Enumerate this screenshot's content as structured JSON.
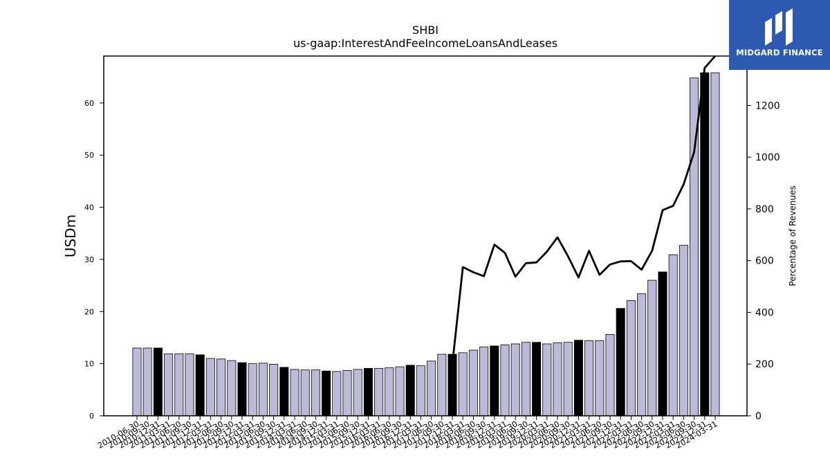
{
  "chart_data": {
    "type": "bar",
    "title": "SHBI",
    "subtitle": "us-gaap:InterestAndFeeIncomeLoansAndLeases",
    "ylabel": "USDm",
    "y2label": "Percentage of Revenues",
    "ylim": [
      0,
      69
    ],
    "y2lim": [
      0,
      1391
    ],
    "yticks": [
      0,
      10,
      20,
      30,
      40,
      50,
      60
    ],
    "y2ticks": [
      0,
      200,
      400,
      600,
      800,
      1000,
      1200
    ],
    "bar_colors": {
      "quarter": "#bcbad9",
      "fiscal_year_end": "#000000"
    },
    "line_color": "#000000",
    "categories": [
      "2010-06-30",
      "2010-09-30",
      "2010-12-31",
      "2011-03-31",
      "2011-06-30",
      "2011-09-30",
      "2011-12-31",
      "2012-03-31",
      "2012-06-30",
      "2012-09-30",
      "2012-12-31",
      "2013-03-31",
      "2013-06-30",
      "2013-09-30",
      "2013-12-31",
      "2014-03-31",
      "2014-06-30",
      "2014-09-30",
      "2014-12-31",
      "2015-03-31",
      "2015-06-30",
      "2015-09-30",
      "2015-12-31",
      "2016-03-31",
      "2016-06-30",
      "2016-09-30",
      "2016-12-31",
      "2017-03-31",
      "2017-06-30",
      "2017-09-30",
      "2017-12-31",
      "2018-03-31",
      "2018-06-30",
      "2018-09-30",
      "2018-12-31",
      "2019-03-31",
      "2019-06-30",
      "2019-09-30",
      "2019-12-31",
      "2020-03-31",
      "2020-06-30",
      "2020-09-30",
      "2020-12-31",
      "2021-03-31",
      "2021-06-30",
      "2021-09-30",
      "2021-12-31",
      "2022-03-31",
      "2022-06-30",
      "2022-09-30",
      "2022-12-31",
      "2023-03-31",
      "2023-06-30",
      "2023-09-30",
      "2023-12-31",
      "2024-03-31"
    ],
    "series": [
      {
        "type": "bar",
        "values": [
          13.0,
          13.0,
          13.0,
          11.9,
          11.9,
          11.9,
          11.7,
          11.0,
          10.9,
          10.6,
          10.2,
          10.0,
          10.1,
          9.9,
          9.3,
          8.9,
          8.8,
          8.8,
          8.6,
          8.5,
          8.7,
          8.9,
          9.1,
          9.1,
          9.2,
          9.4,
          9.7,
          9.6,
          10.5,
          11.8,
          11.8,
          12.1,
          12.6,
          13.2,
          13.4,
          13.6,
          13.8,
          14.1,
          14.1,
          13.8,
          14.0,
          14.1,
          14.5,
          14.4,
          14.4,
          15.6,
          20.6,
          22.1,
          23.4,
          26.0,
          27.6,
          30.9,
          32.7,
          64.8,
          65.8,
          65.8
        ],
        "fiscal_year_end": [
          false,
          false,
          true,
          false,
          false,
          false,
          true,
          false,
          false,
          false,
          true,
          false,
          false,
          false,
          true,
          false,
          false,
          false,
          true,
          false,
          false,
          false,
          true,
          false,
          false,
          false,
          true,
          false,
          false,
          false,
          true,
          false,
          false,
          false,
          true,
          false,
          false,
          false,
          true,
          false,
          false,
          false,
          true,
          false,
          false,
          false,
          true,
          false,
          false,
          false,
          true,
          false,
          false,
          false,
          true,
          false
        ]
      },
      {
        "type": "line",
        "axis": "y2",
        "values": [
          null,
          null,
          null,
          null,
          null,
          null,
          null,
          null,
          null,
          null,
          null,
          null,
          null,
          null,
          null,
          null,
          null,
          null,
          null,
          null,
          null,
          null,
          null,
          null,
          null,
          null,
          null,
          null,
          null,
          null,
          200,
          575,
          555,
          540,
          662,
          630,
          538,
          590,
          593,
          635,
          690,
          617,
          535,
          638,
          545,
          585,
          597,
          598,
          565,
          638,
          795,
          812,
          895,
          1020,
          1345,
          1391
        ]
      }
    ]
  },
  "logo": {
    "text": "MIDGARD FINANCE"
  }
}
